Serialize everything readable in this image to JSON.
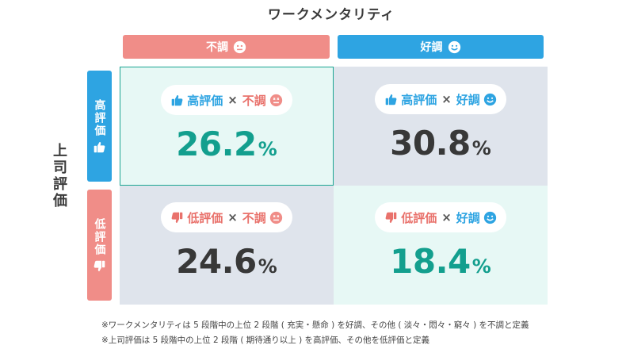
{
  "chart_data": {
    "type": "table",
    "title": "ワークメンタリティ",
    "columns": [
      "不調",
      "好調"
    ],
    "rows_title": "上司評価",
    "rows": [
      "高評価",
      "低評価"
    ],
    "cells": [
      [
        {
          "label_left": "高評価",
          "label_right": "不調",
          "value": 26.2
        },
        {
          "label_left": "高評価",
          "label_right": "好調",
          "value": 30.8
        }
      ],
      [
        {
          "label_left": "低評価",
          "label_right": "不調",
          "value": 24.6
        },
        {
          "label_left": "低評価",
          "label_right": "好調",
          "value": 18.4
        }
      ]
    ],
    "unit": "%",
    "cross": "×",
    "cell_strings": {
      "c00_value": "26.2",
      "c01_value": "30.8",
      "c10_value": "24.6",
      "c11_value": "18.4"
    },
    "notes": [
      "※ワークメンタリティは 5 段階中の上位 2 段階 ( 充実・懸命 ) を好調、その他 ( 淡々・悶々・窮々 ) を不調と定義",
      "※上司評価は 5 段階中の上位 2 段階 ( 期待通り以上 ) を高評価、その他を低評価と定義"
    ]
  },
  "colors": {
    "blue": "#2ea4e2",
    "red": "#f08d88",
    "teal_text": "#139f8e",
    "highlight_bg": "#e7f8f5",
    "neutral_bg": "#dfe4ec"
  },
  "icons": {
    "bad_face": "sad-face-icon",
    "good_face": "smile-face-icon",
    "thumb_up": "thumbs-up-icon",
    "thumb_down": "thumbs-down-icon"
  }
}
